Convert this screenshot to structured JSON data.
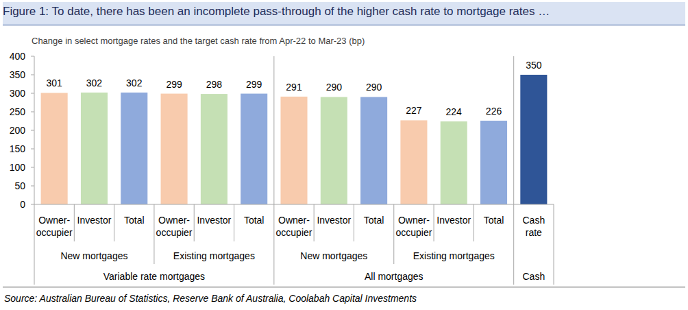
{
  "chart_data": {
    "type": "bar",
    "title": "Figure 1: To date, there has been an incomplete pass-through of the higher cash rate to mortgage rates …",
    "subtitle": "Change in select mortgage rates and the target cash rate from Apr-22 to Mar-23 (bp)",
    "categories": [
      "Owner-occupier",
      "Investor",
      "Total",
      "Owner-occupier",
      "Investor",
      "Total",
      "Owner-occupier",
      "Investor",
      "Total",
      "Owner-occupier",
      "Investor",
      "Total",
      "Cash rate"
    ],
    "values": [
      301,
      302,
      302,
      299,
      298,
      299,
      291,
      290,
      290,
      227,
      224,
      226,
      350
    ],
    "colors": [
      "#f8cbad",
      "#c5e0b4",
      "#8faadc",
      "#f8cbad",
      "#c5e0b4",
      "#8faadc",
      "#f8cbad",
      "#c5e0b4",
      "#8faadc",
      "#f8cbad",
      "#c5e0b4",
      "#8faadc",
      "#2f5597"
    ],
    "groups": [
      {
        "label": "New mortgages",
        "count": 3
      },
      {
        "label": "Existing mortgages",
        "count": 3
      },
      {
        "label": "New mortgages",
        "count": 3
      },
      {
        "label": "Existing mortgages",
        "count": 3
      }
    ],
    "supergroups": [
      {
        "label": "Variable rate mortgages",
        "count": 6
      },
      {
        "label": "All mortgages",
        "count": 6
      },
      {
        "label": "Cash",
        "count": 1
      }
    ],
    "ylim": [
      0,
      400
    ],
    "yticks": [
      0,
      50,
      100,
      150,
      200,
      250,
      300,
      350,
      400
    ],
    "data_labels": true,
    "source": "Source: Australian Bureau of Statistics, Reserve Bank of Australia, Coolabah Capital Investments"
  }
}
